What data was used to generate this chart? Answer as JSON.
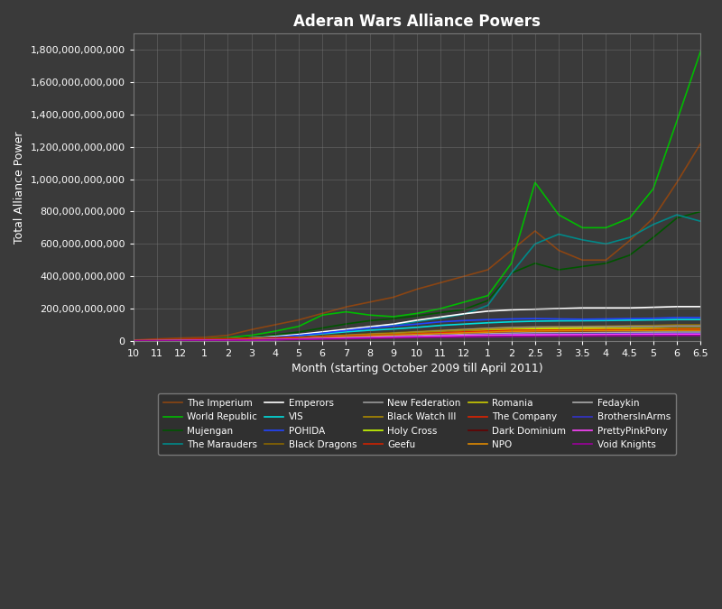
{
  "title": "Aderan Wars Alliance Powers",
  "xlabel": "Month (starting October 2009 till April 2011)",
  "ylabel": "Total Alliance Power",
  "background_color": "#3a3a3a",
  "plot_bg_color": "#3a3a3a",
  "text_color": "#ffffff",
  "grid_color": "#777777",
  "ylim": [
    0,
    1900000000000
  ],
  "x_tick_labels": [
    "10",
    "11",
    "12",
    "1",
    "2",
    "3",
    "4",
    "5",
    "6",
    "7",
    "8",
    "9",
    "10",
    "11",
    "12",
    "1",
    "2",
    "2.5",
    "3",
    "3.5",
    "4",
    "4.5",
    "5",
    "6",
    "6.5"
  ],
  "series": [
    {
      "name": "The Imperium",
      "color": "#8B4513",
      "data": [
        5000000000.0,
        12000000000.0,
        18000000000.0,
        22000000000.0,
        35000000000.0,
        70000000000.0,
        100000000000.0,
        130000000000.0,
        170000000000.0,
        210000000000.0,
        240000000000.0,
        270000000000.0,
        320000000000.0,
        360000000000.0,
        400000000000.0,
        440000000000.0,
        560000000000.0,
        680000000000.0,
        560000000000.0,
        500000000000.0,
        500000000000.0,
        620000000000.0,
        760000000000.0,
        980000000000.0,
        1220000000000.0
      ]
    },
    {
      "name": "World Republic",
      "color": "#00bb00",
      "data": [
        2000000000.0,
        5000000000.0,
        8000000000.0,
        12000000000.0,
        20000000000.0,
        35000000000.0,
        60000000000.0,
        90000000000.0,
        160000000000.0,
        180000000000.0,
        160000000000.0,
        150000000000.0,
        170000000000.0,
        200000000000.0,
        240000000000.0,
        280000000000.0,
        480000000000.0,
        980000000000.0,
        780000000000.0,
        700000000000.0,
        700000000000.0,
        760000000000.0,
        940000000000.0,
        1360000000000.0,
        1790000000000.0
      ]
    },
    {
      "name": "Mujengan",
      "color": "#005500",
      "data": [
        1000000000.0,
        3000000000.0,
        5000000000.0,
        8000000000.0,
        14000000000.0,
        22000000000.0,
        38000000000.0,
        55000000000.0,
        80000000000.0,
        105000000000.0,
        125000000000.0,
        138000000000.0,
        155000000000.0,
        175000000000.0,
        195000000000.0,
        250000000000.0,
        420000000000.0,
        480000000000.0,
        440000000000.0,
        460000000000.0,
        480000000000.0,
        530000000000.0,
        640000000000.0,
        760000000000.0,
        800000000000.0
      ]
    },
    {
      "name": "The Marauders",
      "color": "#008888",
      "data": [
        1000000000.0,
        3000000000.0,
        5000000000.0,
        6000000000.0,
        10000000000.0,
        16000000000.0,
        25000000000.0,
        38000000000.0,
        50000000000.0,
        65000000000.0,
        80000000000.0,
        95000000000.0,
        120000000000.0,
        140000000000.0,
        165000000000.0,
        220000000000.0,
        420000000000.0,
        600000000000.0,
        660000000000.0,
        625000000000.0,
        600000000000.0,
        640000000000.0,
        720000000000.0,
        780000000000.0,
        740000000000.0
      ]
    },
    {
      "name": "Emperors",
      "color": "#ffffff",
      "data": [
        1000000000.0,
        3000000000.0,
        5000000000.0,
        6000000000.0,
        11000000000.0,
        18000000000.0,
        28000000000.0,
        40000000000.0,
        56000000000.0,
        72000000000.0,
        88000000000.0,
        104000000000.0,
        128000000000.0,
        148000000000.0,
        168000000000.0,
        184000000000.0,
        192000000000.0,
        196000000000.0,
        200000000000.0,
        204000000000.0,
        204000000000.0,
        204000000000.0,
        208000000000.0,
        212000000000.0,
        212000000000.0
      ]
    },
    {
      "name": "VIS",
      "color": "#00dddd",
      "data": [
        2000000000.0,
        4000000000.0,
        6000000000.0,
        8000000000.0,
        12000000000.0,
        18000000000.0,
        24000000000.0,
        32000000000.0,
        44000000000.0,
        56000000000.0,
        66000000000.0,
        74000000000.0,
        84000000000.0,
        96000000000.0,
        104000000000.0,
        112000000000.0,
        118000000000.0,
        122000000000.0,
        124000000000.0,
        125000000000.0,
        126000000000.0,
        128000000000.0,
        130000000000.0,
        132000000000.0,
        132000000000.0
      ]
    },
    {
      "name": "POHIDA",
      "color": "#2244ff",
      "data": [
        1000000000.0,
        3000000000.0,
        5000000000.0,
        6000000000.0,
        10000000000.0,
        14000000000.0,
        22000000000.0,
        34000000000.0,
        48000000000.0,
        64000000000.0,
        80000000000.0,
        92000000000.0,
        104000000000.0,
        118000000000.0,
        126000000000.0,
        132000000000.0,
        136000000000.0,
        138000000000.0,
        136000000000.0,
        134000000000.0,
        136000000000.0,
        138000000000.0,
        140000000000.0,
        144000000000.0,
        144000000000.0
      ]
    },
    {
      "name": "Black Dragons",
      "color": "#886600",
      "data": [
        500000000.0,
        1500000000.0,
        3000000000.0,
        4000000000.0,
        6500000000.0,
        10000000000.0,
        15000000000.0,
        20000000000.0,
        28000000000.0,
        36000000000.0,
        44000000000.0,
        50000000000.0,
        58000000000.0,
        66000000000.0,
        72000000000.0,
        78000000000.0,
        84000000000.0,
        86000000000.0,
        88000000000.0,
        90000000000.0,
        92000000000.0,
        94000000000.0,
        96000000000.0,
        100000000000.0,
        100000000000.0
      ]
    },
    {
      "name": "New Federation",
      "color": "#999999",
      "data": [
        500000000.0,
        1500000000.0,
        2500000000.0,
        4000000000.0,
        6500000000.0,
        10000000000.0,
        15000000000.0,
        20000000000.0,
        28000000000.0,
        34000000000.0,
        40000000000.0,
        46000000000.0,
        54000000000.0,
        62000000000.0,
        70000000000.0,
        77000000000.0,
        83000000000.0,
        85000000000.0,
        86000000000.0,
        87000000000.0,
        88000000000.0,
        90000000000.0,
        90000000000.0,
        92000000000.0,
        92000000000.0
      ]
    },
    {
      "name": "Black Watch III",
      "color": "#aa8800",
      "data": [
        500000000.0,
        1500000000.0,
        2500000000.0,
        4000000000.0,
        6500000000.0,
        10000000000.0,
        15000000000.0,
        20000000000.0,
        28000000000.0,
        34000000000.0,
        40000000000.0,
        46000000000.0,
        53000000000.0,
        59000000000.0,
        66000000000.0,
        72000000000.0,
        77000000000.0,
        78000000000.0,
        80000000000.0,
        80000000000.0,
        80000000000.0,
        80000000000.0,
        80000000000.0,
        80000000000.0,
        80000000000.0
      ]
    },
    {
      "name": "Holy Cross",
      "color": "#ccff00",
      "data": [
        500000000.0,
        1500000000.0,
        2500000000.0,
        3000000000.0,
        5000000000.0,
        7000000000.0,
        10500000000.0,
        14500000000.0,
        20000000000.0,
        24000000000.0,
        30000000000.0,
        35000000000.0,
        42000000000.0,
        48000000000.0,
        56000000000.0,
        64000000000.0,
        70000000000.0,
        74000000000.0,
        76000000000.0,
        77000000000.0,
        76000000000.0,
        76000000000.0,
        75000000000.0,
        72000000000.0,
        72000000000.0
      ]
    },
    {
      "name": "Geefu",
      "color": "#cc2200",
      "data": [
        4000000000.0,
        8000000000.0,
        10000000000.0,
        12000000000.0,
        14500000000.0,
        17500000000.0,
        20000000000.0,
        22500000000.0,
        25500000000.0,
        29000000000.0,
        32000000000.0,
        33500000000.0,
        35000000000.0,
        37000000000.0,
        38500000000.0,
        40000000000.0,
        41500000000.0,
        42500000000.0,
        43000000000.0,
        43000000000.0,
        43000000000.0,
        44000000000.0,
        44000000000.0,
        44500000000.0,
        44500000000.0
      ]
    },
    {
      "name": "Romania",
      "color": "#cccc00",
      "data": [
        500000000.0,
        1500000000.0,
        2500000000.0,
        3000000000.0,
        5000000000.0,
        7000000000.0,
        10500000000.0,
        14500000000.0,
        20000000000.0,
        24000000000.0,
        29000000000.0,
        34000000000.0,
        40000000000.0,
        46000000000.0,
        53000000000.0,
        58000000000.0,
        62000000000.0,
        64000000000.0,
        66000000000.0,
        67000000000.0,
        68000000000.0,
        69000000000.0,
        70000000000.0,
        70000000000.0,
        70000000000.0
      ]
    },
    {
      "name": "The Company",
      "color": "#dd2200",
      "data": [
        500000000.0,
        1500000000.0,
        2500000000.0,
        3000000000.0,
        5000000000.0,
        7000000000.0,
        11000000000.0,
        16000000000.0,
        22000000000.0,
        28000000000.0,
        34000000000.0,
        38000000000.0,
        44000000000.0,
        50000000000.0,
        56000000000.0,
        61000000000.0,
        66000000000.0,
        67000000000.0,
        68000000000.0,
        69000000000.0,
        70000000000.0,
        70000000000.0,
        71000000000.0,
        72000000000.0,
        72000000000.0
      ]
    },
    {
      "name": "Dark Dominium",
      "color": "#660000",
      "data": [
        500000000.0,
        1500000000.0,
        2500000000.0,
        3000000000.0,
        4000000000.0,
        6500000000.0,
        9500000000.0,
        13000000000.0,
        17500000000.0,
        22000000000.0,
        27000000000.0,
        32000000000.0,
        37000000000.0,
        42000000000.0,
        46000000000.0,
        51000000000.0,
        56000000000.0,
        58000000000.0,
        59000000000.0,
        60000000000.0,
        61000000000.0,
        62000000000.0,
        64000000000.0,
        66000000000.0,
        66000000000.0
      ]
    },
    {
      "name": "NPO",
      "color": "#dd8800",
      "data": [
        500000000.0,
        1500000000.0,
        2500000000.0,
        3000000000.0,
        5000000000.0,
        7000000000.0,
        10500000000.0,
        14500000000.0,
        20000000000.0,
        25500000000.0,
        30000000000.0,
        35000000000.0,
        40000000000.0,
        45000000000.0,
        49500000000.0,
        54000000000.0,
        59000000000.0,
        61000000000.0,
        62000000000.0,
        63000000000.0,
        63000000000.0,
        64000000000.0,
        64000000000.0,
        65500000000.0,
        65500000000.0
      ]
    },
    {
      "name": "Fedaykin",
      "color": "#aaaaaa",
      "data": [
        500000000.0,
        1500000000.0,
        2500000000.0,
        3000000000.0,
        4000000000.0,
        6500000000.0,
        9000000000.0,
        12000000000.0,
        16000000000.0,
        20000000000.0,
        24000000000.0,
        28000000000.0,
        32000000000.0,
        36000000000.0,
        40000000000.0,
        44000000000.0,
        48000000000.0,
        50000000000.0,
        50500000000.0,
        51000000000.0,
        52000000000.0,
        53000000000.0,
        54000000000.0,
        54500000000.0,
        54500000000.0
      ]
    },
    {
      "name": "BrothersInArms",
      "color": "#3333cc",
      "data": [
        500000000.0,
        1000000000.0,
        2000000000.0,
        3000000000.0,
        4000000000.0,
        5500000000.0,
        8000000000.0,
        11000000000.0,
        14500000000.0,
        17500000000.0,
        21000000000.0,
        24000000000.0,
        27000000000.0,
        30000000000.0,
        34000000000.0,
        37000000000.0,
        40000000000.0,
        41500000000.0,
        42500000000.0,
        43000000000.0,
        44000000000.0,
        45000000000.0,
        45500000000.0,
        46000000000.0,
        46000000000.0
      ]
    },
    {
      "name": "PrettyPinkPony",
      "color": "#ff44ff",
      "data": [
        500000000.0,
        1000000000.0,
        2000000000.0,
        3000000000.0,
        4000000000.0,
        5500000000.0,
        8000000000.0,
        11000000000.0,
        14500000000.0,
        17500000000.0,
        21000000000.0,
        24000000000.0,
        27000000000.0,
        30000000000.0,
        34000000000.0,
        35000000000.0,
        37000000000.0,
        38000000000.0,
        38500000000.0,
        39000000000.0,
        40000000000.0,
        41000000000.0,
        41500000000.0,
        42000000000.0,
        42000000000.0
      ]
    },
    {
      "name": "Void Knights",
      "color": "#990099",
      "data": [
        500000000.0,
        1000000000.0,
        1500000000.0,
        2000000000.0,
        3000000000.0,
        5000000000.0,
        6500000000.0,
        9000000000.0,
        11000000000.0,
        13500000000.0,
        16000000000.0,
        18500000000.0,
        21000000000.0,
        22500000000.0,
        24000000000.0,
        25500000000.0,
        27000000000.0,
        28000000000.0,
        29000000000.0,
        29500000000.0,
        30500000000.0,
        31000000000.0,
        32000000000.0,
        33500000000.0,
        33500000000.0
      ]
    }
  ]
}
